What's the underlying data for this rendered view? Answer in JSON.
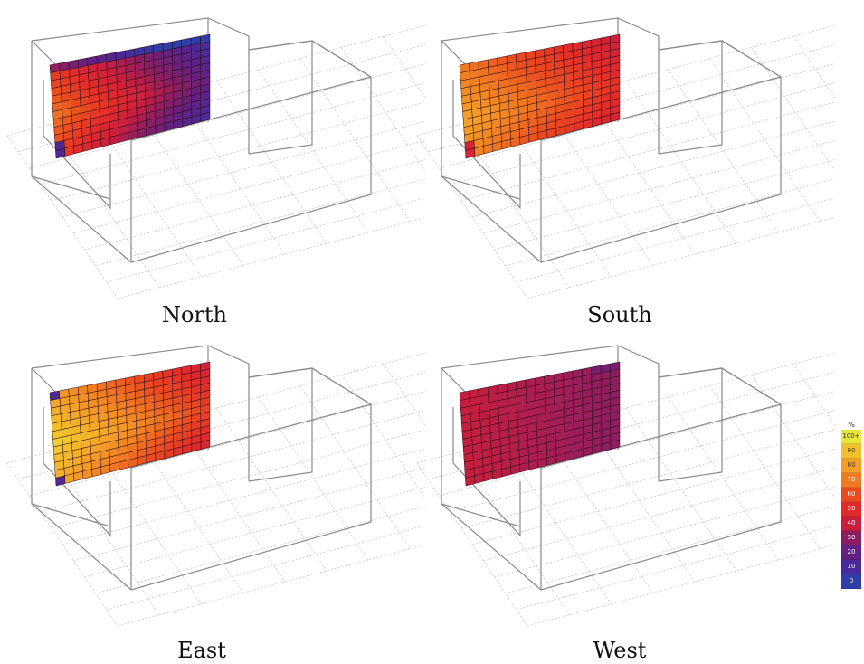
{
  "panels": [
    {
      "id": "north",
      "caption": "North",
      "kind": "north"
    },
    {
      "id": "south",
      "caption": "South",
      "kind": "south"
    },
    {
      "id": "east",
      "caption": "East",
      "kind": "east"
    },
    {
      "id": "west",
      "caption": "West",
      "kind": "west"
    }
  ],
  "legend": {
    "unit": "%",
    "items": [
      {
        "label": "100+",
        "color": "#e8e63c"
      },
      {
        "label": "90",
        "color": "#f2c02c"
      },
      {
        "label": "80",
        "color": "#f4a028"
      },
      {
        "label": "70",
        "color": "#f07a22"
      },
      {
        "label": "60",
        "color": "#ea4a20"
      },
      {
        "label": "50",
        "color": "#e22a2a"
      },
      {
        "label": "40",
        "color": "#c81e3e"
      },
      {
        "label": "30",
        "color": "#8a1e62"
      },
      {
        "label": "20",
        "color": "#622082"
      },
      {
        "label": "10",
        "color": "#4a2a98"
      },
      {
        "label": "0",
        "color": "#2e3ea6"
      }
    ]
  }
}
